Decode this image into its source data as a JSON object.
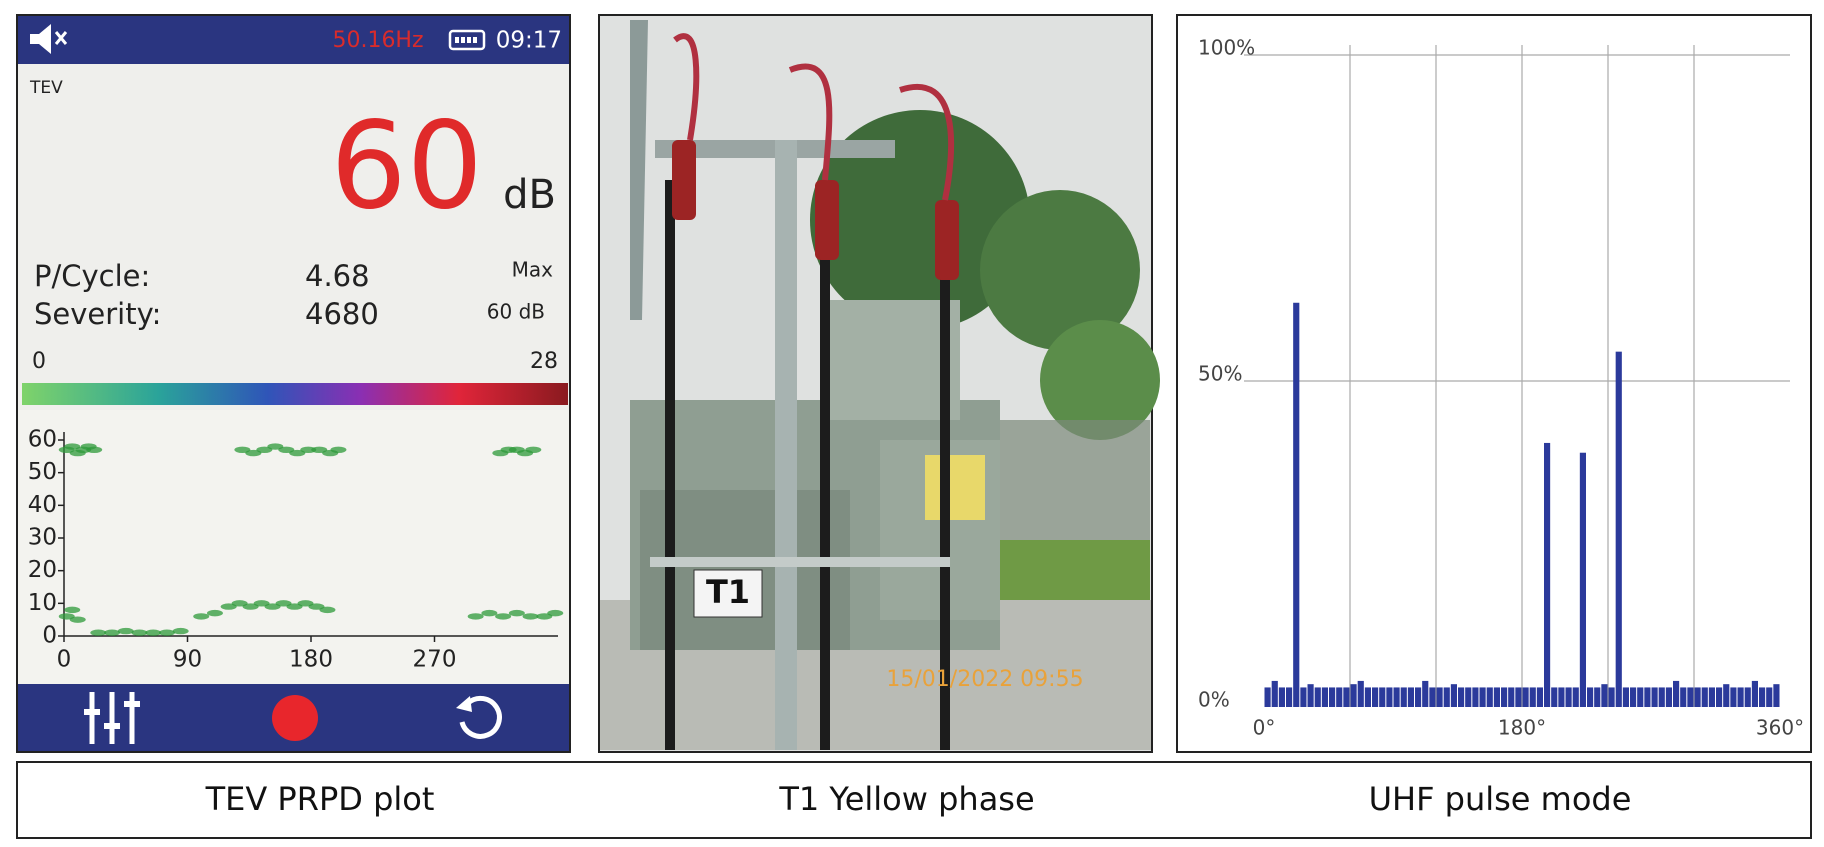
{
  "device": {
    "header": {
      "frequency": "50.16Hz",
      "time": "09:17"
    },
    "mode": "TEV",
    "reading": {
      "value": 60,
      "unit": "dB"
    },
    "stats": [
      {
        "label": "P/Cycle:",
        "value": 4.68
      },
      {
        "label": "Severity:",
        "value": 4680
      }
    ],
    "max": {
      "label": "Max",
      "value": "60 dB"
    },
    "color_scale": {
      "min": 0,
      "max": 28
    }
  },
  "photo": {
    "sign": "T1",
    "timestamp": "15/01/2022 09:55"
  },
  "captions": [
    "TEV PRPD plot",
    "T1 Yellow phase",
    "UHF pulse mode"
  ],
  "chart_data": [
    {
      "type": "scatter",
      "color": "#2e9a3a",
      "x": [
        2,
        6,
        10,
        14,
        18,
        22,
        130,
        138,
        146,
        154,
        162,
        170,
        178,
        186,
        194,
        200,
        318,
        324,
        330,
        336,
        342,
        2,
        6,
        10,
        25,
        35,
        45,
        55,
        65,
        75,
        85,
        100,
        110,
        120,
        128,
        136,
        144,
        152,
        160,
        168,
        176,
        184,
        192,
        300,
        310,
        320,
        330,
        340,
        350,
        358
      ],
      "y": [
        57,
        58,
        56,
        57,
        58,
        57,
        57,
        56,
        57,
        58,
        57,
        56,
        57,
        57,
        56,
        57,
        56,
        57,
        57,
        56,
        57,
        6,
        8,
        5,
        1,
        1,
        1.5,
        1,
        1,
        1,
        1.5,
        6,
        7,
        9,
        10,
        9,
        10,
        9,
        10,
        9,
        10,
        9,
        8,
        6,
        7,
        6,
        7,
        6,
        6,
        7
      ],
      "xlim": [
        0,
        360
      ],
      "ylim": [
        0,
        60
      ],
      "xticks": [
        0,
        90,
        180,
        270
      ],
      "yticks": [
        0,
        10,
        20,
        30,
        40,
        50,
        60
      ]
    },
    {
      "type": "histogram",
      "color": "#2b3a9b",
      "bins": [
        0,
        5,
        10,
        15,
        20,
        25,
        30,
        35,
        40,
        45,
        50,
        55,
        60,
        65,
        70,
        75,
        80,
        85,
        90,
        95,
        100,
        105,
        110,
        115,
        120,
        125,
        130,
        135,
        140,
        145,
        150,
        155,
        160,
        165,
        170,
        175,
        180,
        185,
        190,
        195,
        200,
        205,
        210,
        215,
        220,
        225,
        230,
        235,
        240,
        245,
        250,
        255,
        260,
        265,
        270,
        275,
        280,
        285,
        290,
        295,
        300,
        305,
        310,
        315,
        320,
        325,
        330,
        335,
        340,
        345,
        350,
        355,
        360
      ],
      "values": [
        3,
        4,
        3,
        3,
        62,
        3,
        3.5,
        3,
        3,
        3,
        3,
        3,
        3.5,
        4,
        3,
        3,
        3,
        3,
        3,
        3,
        3,
        3,
        4,
        3,
        3,
        3,
        3.5,
        3,
        3,
        3,
        3,
        3,
        3,
        3,
        3,
        3,
        3,
        3,
        3,
        40.5,
        3,
        3,
        3,
        3,
        39,
        3,
        3,
        3.5,
        3,
        54.5,
        3,
        3,
        3,
        3,
        3,
        3,
        3,
        4,
        3,
        3,
        3,
        3,
        3,
        3,
        3.5,
        3,
        3,
        3,
        4,
        3,
        3,
        3.5
      ],
      "xlim": [
        0,
        360
      ],
      "ylim": [
        0,
        100
      ],
      "xticks": [
        {
          "value": 0,
          "label": "0°"
        },
        {
          "value": 180,
          "label": "180°"
        },
        {
          "value": 360,
          "label": "360°"
        }
      ],
      "yticks": [
        {
          "value": 0,
          "label": "0%"
        },
        {
          "value": 50,
          "label": "50%"
        },
        {
          "value": 100,
          "label": "100%"
        }
      ],
      "xgrid": [
        60,
        120,
        180,
        240,
        300
      ],
      "grid": true
    }
  ]
}
